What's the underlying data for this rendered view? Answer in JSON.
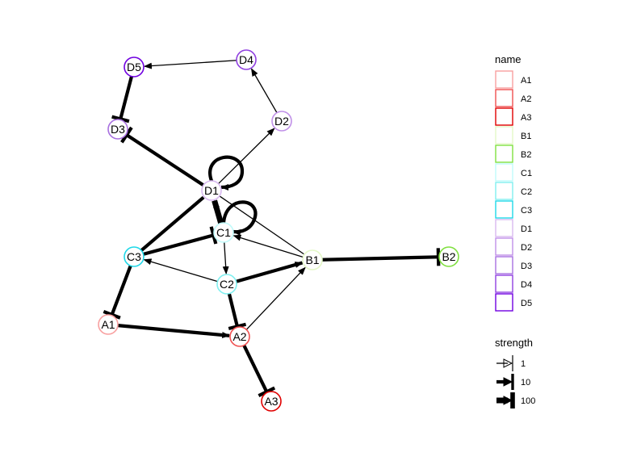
{
  "nodes": [
    {
      "id": "A1",
      "label": "A1",
      "color": "#F8A0A0"
    },
    {
      "id": "A2",
      "label": "A2",
      "color": "#F05050"
    },
    {
      "id": "A3",
      "label": "A3",
      "color": "#E00000"
    },
    {
      "id": "B1",
      "label": "B1",
      "color": "#E4F8C8"
    },
    {
      "id": "B2",
      "label": "B2",
      "color": "#80E040"
    },
    {
      "id": "C1",
      "label": "C1",
      "color": "#C0FAFA"
    },
    {
      "id": "C2",
      "label": "C2",
      "color": "#80F0F0"
    },
    {
      "id": "C3",
      "label": "C3",
      "color": "#20D8E8"
    },
    {
      "id": "D1",
      "label": "D1",
      "color": "#D8B8F0"
    },
    {
      "id": "D2",
      "label": "D2",
      "color": "#C090E8"
    },
    {
      "id": "D3",
      "label": "D3",
      "color": "#A870E0"
    },
    {
      "id": "D4",
      "label": "D4",
      "color": "#9040E0"
    },
    {
      "id": "D5",
      "label": "D5",
      "color": "#7000E0"
    }
  ],
  "edges": [
    {
      "from": "D4",
      "to": "D5",
      "type": "arrow",
      "strength": 1
    },
    {
      "from": "D5",
      "to": "D3",
      "type": "inhibit",
      "strength": 10
    },
    {
      "from": "D1",
      "to": "D3",
      "type": "inhibit",
      "strength": 10
    },
    {
      "from": "D1",
      "to": "D2",
      "type": "arrow",
      "strength": 1
    },
    {
      "from": "D2",
      "to": "D4",
      "type": "arrow",
      "strength": 1
    },
    {
      "from": "D1",
      "to": "D1",
      "type": "arrow",
      "strength": 10
    },
    {
      "from": "C1",
      "to": "C1",
      "type": "arrow",
      "strength": 10
    },
    {
      "from": "C1",
      "to": "D1",
      "type": "arrow",
      "strength": 100
    },
    {
      "from": "C3",
      "to": "D1",
      "type": "line",
      "strength": 10
    },
    {
      "from": "C3",
      "to": "C1",
      "type": "inhibit",
      "strength": 10
    },
    {
      "from": "B1",
      "to": "C1",
      "type": "arrow",
      "strength": 1
    },
    {
      "from": "D1",
      "to": "B1",
      "type": "line",
      "strength": 1
    },
    {
      "from": "C1",
      "to": "C2",
      "type": "arrow",
      "strength": 1
    },
    {
      "from": "C2",
      "to": "C3",
      "type": "arrow",
      "strength": 1
    },
    {
      "from": "C2",
      "to": "B1",
      "type": "arrow",
      "strength": 10
    },
    {
      "from": "B1",
      "to": "B2",
      "type": "inhibit",
      "strength": 10
    },
    {
      "from": "C3",
      "to": "A1",
      "type": "inhibit",
      "strength": 10
    },
    {
      "from": "A1",
      "to": "A2",
      "type": "arrow",
      "strength": 10
    },
    {
      "from": "C2",
      "to": "A2",
      "type": "inhibit",
      "strength": 10
    },
    {
      "from": "A2",
      "to": "B1",
      "type": "arrow",
      "strength": 1
    },
    {
      "from": "A2",
      "to": "A3",
      "type": "inhibit",
      "strength": 10
    }
  ],
  "legend": {
    "name_title": "name",
    "strength_title": "strength",
    "strength_entries": [
      {
        "label": "1",
        "value": 1
      },
      {
        "label": "10",
        "value": 10
      },
      {
        "label": "100",
        "value": 100
      }
    ]
  }
}
